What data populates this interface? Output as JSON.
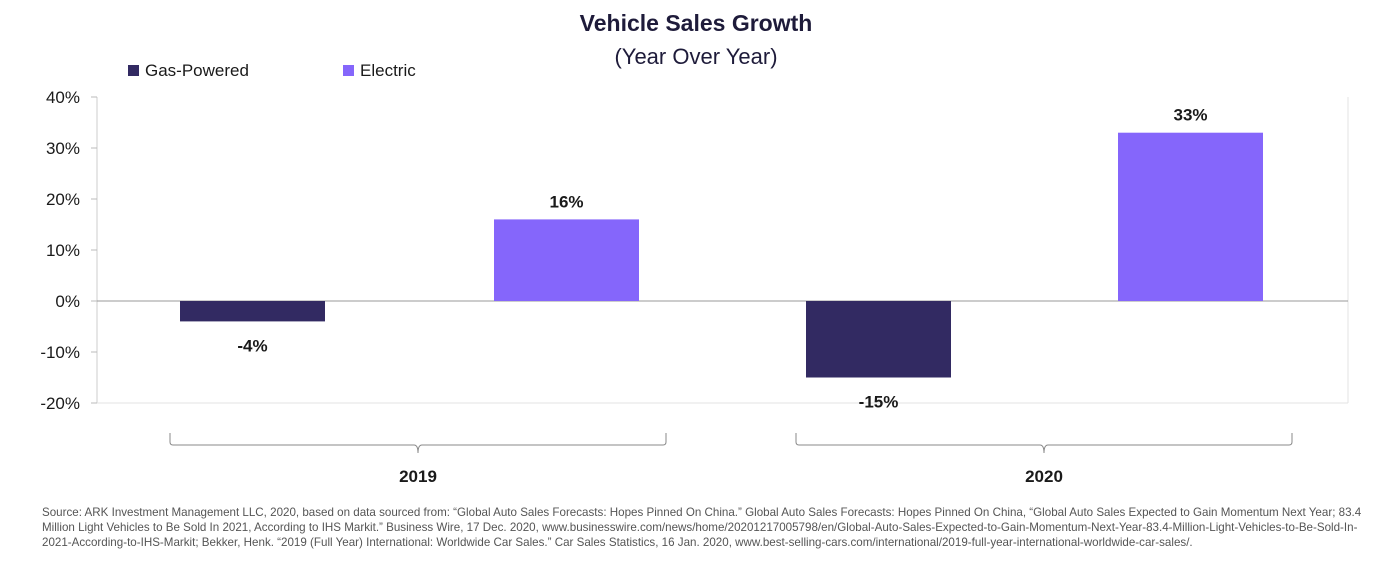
{
  "chart_data": {
    "type": "bar",
    "title": "Vehicle Sales Growth",
    "subtitle": "(Year Over Year)",
    "categories": [
      "2019",
      "2020"
    ],
    "series": [
      {
        "name": "Gas-Powered",
        "color": "#322a62",
        "values": [
          -4,
          -15
        ],
        "labels": [
          "-4%",
          "-15%"
        ]
      },
      {
        "name": "Electric",
        "color": "#8566fb",
        "values": [
          16,
          33
        ],
        "labels": [
          "16%",
          "33%"
        ]
      }
    ],
    "ylim": [
      -20,
      40
    ],
    "yticks": [
      40,
      30,
      20,
      10,
      0,
      -10,
      -20
    ],
    "ytick_labels": [
      "40%",
      "30%",
      "20%",
      "10%",
      "0%",
      "-10%",
      "-20%"
    ],
    "legend_position": "top-left",
    "grid": false
  },
  "source_text": "Source: ARK Investment Management LLC, 2020, based on data sourced from: “Global Auto Sales Forecasts: Hopes Pinned On China.” Global Auto Sales Forecasts: Hopes Pinned On China, “Global Auto Sales Expected to Gain Momentum Next Year; 83.4 Million Light Vehicles to Be Sold In 2021, According to IHS Markit.” Business Wire, 17 Dec. 2020, www.businesswire.com/news/home/20201217005798/en/Global-Auto-Sales-Expected-to-Gain-Momentum-Next-Year-83.4-Million-Light-Vehicles-to-Be-Sold-In-2021-According-to-IHS-Markit; Bekker, Henk. “2019 (Full Year) International: Worldwide Car Sales.” Car Sales Statistics, 16 Jan. 2020, www.best-selling-cars.com/international/2019-full-year-international-worldwide-car-sales/.",
  "colors": {
    "axis": "#999999",
    "text": "#1a1a1a",
    "title": "#1e1b3a"
  }
}
